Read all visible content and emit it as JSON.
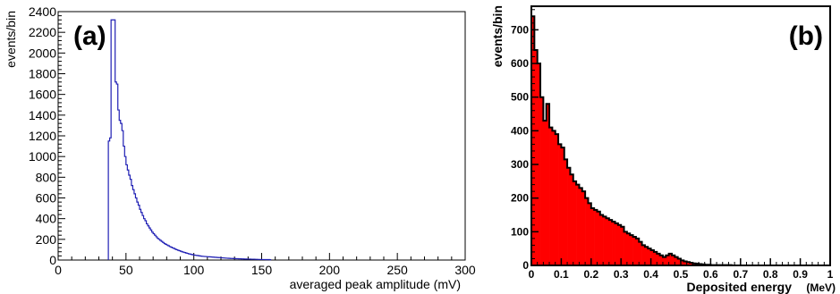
{
  "chart_data": [
    {
      "type": "bar",
      "panel_label": "(a)",
      "title": "",
      "xlabel": "averaged peak  amplitude (mV)",
      "ylabel": "events/bin",
      "xlim": [
        0,
        300
      ],
      "ylim": [
        0,
        2400
      ],
      "x_ticks": [
        0,
        50,
        100,
        150,
        200,
        250,
        300
      ],
      "y_ticks": [
        0,
        200,
        400,
        600,
        800,
        1000,
        1200,
        1400,
        1600,
        1800,
        2000,
        2200,
        2400
      ],
      "grid": false,
      "legend": "none",
      "style": "step",
      "line_color": "#1f1fb4",
      "bin_width": 1,
      "x_start": 37,
      "values": [
        1150,
        1180,
        2320,
        2320,
        2320,
        1720,
        1700,
        1450,
        1350,
        1320,
        1250,
        1100,
        1000,
        920,
        870,
        820,
        780,
        720,
        680,
        640,
        600,
        560,
        530,
        490,
        460,
        430,
        400,
        380,
        350,
        330,
        310,
        290,
        270,
        255,
        240,
        225,
        210,
        200,
        190,
        180,
        170,
        160,
        152,
        145,
        138,
        130,
        124,
        118,
        112,
        106,
        100,
        95,
        90,
        85,
        80,
        76,
        72,
        68,
        64,
        60,
        57,
        54,
        51,
        48,
        46,
        44,
        42,
        40,
        38,
        36,
        35,
        34,
        33,
        32,
        31,
        30,
        29,
        28,
        27,
        26,
        25,
        24,
        23,
        22,
        21,
        20,
        19,
        18,
        17,
        16,
        15,
        15,
        14,
        14,
        13,
        13,
        12,
        12,
        11,
        11,
        10,
        10,
        9,
        9,
        9,
        8,
        8,
        8,
        7,
        7,
        6,
        6,
        6,
        5,
        5,
        5,
        4,
        4,
        4,
        3
      ]
    },
    {
      "type": "bar",
      "panel_label": "(b)",
      "title": "",
      "xlabel": "Deposited energy",
      "xunit": "(MeV)",
      "ylabel": "events/bin",
      "xlim": [
        0,
        1
      ],
      "ylim": [
        0,
        770
      ],
      "x_ticks": [
        0,
        0.1,
        0.2,
        0.3,
        0.4,
        0.5,
        0.6,
        0.7,
        0.8,
        0.9,
        1
      ],
      "y_ticks": [
        0,
        100,
        200,
        300,
        400,
        500,
        600,
        700
      ],
      "grid": false,
      "legend": "none",
      "style": "filled-step",
      "fill_color": "#ff0000",
      "line_color": "#000000",
      "bin_width": 0.01,
      "x_start": 0,
      "values": [
        740,
        640,
        600,
        500,
        430,
        480,
        410,
        400,
        390,
        360,
        350,
        315,
        290,
        270,
        250,
        240,
        230,
        220,
        200,
        185,
        170,
        165,
        160,
        150,
        145,
        140,
        135,
        130,
        125,
        120,
        115,
        100,
        95,
        90,
        85,
        80,
        70,
        60,
        55,
        50,
        45,
        40,
        35,
        30,
        25,
        30,
        35,
        30,
        25,
        20,
        15,
        12,
        10,
        8,
        6,
        5,
        4,
        3,
        2,
        2,
        1,
        1,
        1,
        1,
        1,
        1,
        1,
        0,
        0,
        0,
        0,
        0,
        0,
        0,
        0,
        0,
        0,
        0,
        0,
        0,
        0,
        0,
        0,
        0,
        0,
        0,
        0,
        0,
        0,
        0,
        0,
        0,
        0,
        0,
        0,
        0,
        0,
        0,
        0,
        0
      ]
    }
  ]
}
